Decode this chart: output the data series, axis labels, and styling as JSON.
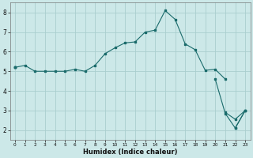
{
  "xlabel": "Humidex (Indice chaleur)",
  "x": [
    0,
    1,
    2,
    3,
    4,
    5,
    6,
    7,
    8,
    9,
    10,
    11,
    12,
    13,
    14,
    15,
    16,
    17,
    18,
    19,
    20,
    21,
    22,
    23
  ],
  "line1": [
    5.2,
    5.3,
    5.0,
    5.0,
    5.0,
    5.0,
    5.1,
    5.0,
    5.3,
    5.9,
    6.2,
    6.45,
    6.5,
    7.0,
    7.1,
    8.1,
    7.65,
    6.4,
    6.1,
    5.05,
    5.1,
    4.6,
    null,
    null
  ],
  "line2": [
    5.2,
    null,
    null,
    null,
    null,
    null,
    null,
    null,
    null,
    null,
    null,
    null,
    null,
    null,
    null,
    null,
    null,
    null,
    null,
    null,
    4.6,
    2.85,
    2.1,
    3.0
  ],
  "line3": [
    5.2,
    null,
    null,
    null,
    null,
    null,
    null,
    null,
    null,
    null,
    null,
    null,
    null,
    null,
    null,
    null,
    null,
    null,
    null,
    null,
    null,
    2.9,
    2.55,
    3.0
  ],
  "line4": [
    5.2,
    null,
    null,
    null,
    null,
    null,
    null,
    null,
    null,
    null,
    null,
    null,
    null,
    null,
    null,
    null,
    null,
    null,
    null,
    null,
    null,
    null,
    2.1,
    3.0
  ],
  "line_color": "#1a6b6b",
  "bg_color": "#cce8e8",
  "grid_color": "#aacece",
  "ylim": [
    1.5,
    8.5
  ],
  "xlim": [
    -0.5,
    23.5
  ],
  "yticks": [
    2,
    3,
    4,
    5,
    6,
    7,
    8
  ],
  "xticks": [
    0,
    1,
    2,
    3,
    4,
    5,
    6,
    7,
    8,
    9,
    10,
    11,
    12,
    13,
    14,
    15,
    16,
    17,
    18,
    19,
    20,
    21,
    22,
    23
  ]
}
